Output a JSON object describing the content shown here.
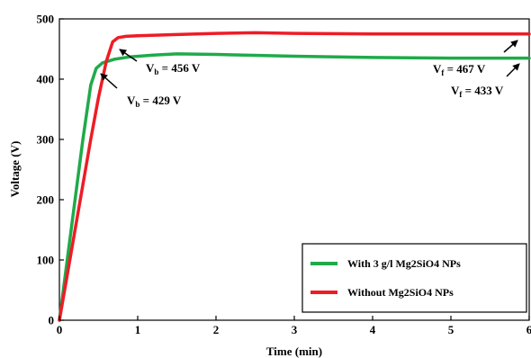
{
  "chart_data": {
    "type": "line",
    "title": "",
    "xlabel": "Time (min)",
    "ylabel": "Voltage (V)",
    "xlim": [
      0,
      6
    ],
    "ylim": [
      0,
      500
    ],
    "x_ticks": [
      "0",
      "1",
      "2",
      "3",
      "4",
      "5",
      "6"
    ],
    "y_ticks": [
      "0",
      "100",
      "200",
      "300",
      "400",
      "500"
    ],
    "grid": false,
    "legend_position": "bottom-right",
    "series": [
      {
        "name": "With 3 g/l Mg2SiO4 NPs",
        "color": "#1faa4a",
        "x": [
          0,
          0.1,
          0.2,
          0.3,
          0.4,
          0.47,
          0.55,
          0.7,
          0.9,
          1.2,
          1.5,
          2.0,
          3.0,
          4.0,
          5.0,
          6.0
        ],
        "y": [
          0,
          100,
          200,
          300,
          390,
          418,
          427,
          433,
          437,
          440,
          442,
          441,
          438,
          436,
          435,
          435
        ]
      },
      {
        "name": "Without Mg2SiO4 NPs",
        "color": "#ee1c25",
        "x": [
          0,
          0.1,
          0.2,
          0.3,
          0.4,
          0.5,
          0.6,
          0.68,
          0.75,
          0.85,
          1.0,
          1.5,
          2.0,
          2.5,
          3.0,
          4.0,
          5.0,
          6.0
        ],
        "y": [
          0,
          75,
          150,
          225,
          300,
          370,
          430,
          462,
          469,
          471,
          472,
          474,
          476,
          477,
          476,
          475,
          475,
          475
        ]
      }
    ],
    "annotations": [
      {
        "main": "V",
        "sub": "b",
        "rest": " = 456 V"
      },
      {
        "main": "V",
        "sub": "b",
        "rest": " = 429 V"
      },
      {
        "main": "V",
        "sub": "f",
        "rest": " = 467 V"
      },
      {
        "main": "V",
        "sub": "f",
        "rest": " = 433 V"
      }
    ]
  }
}
